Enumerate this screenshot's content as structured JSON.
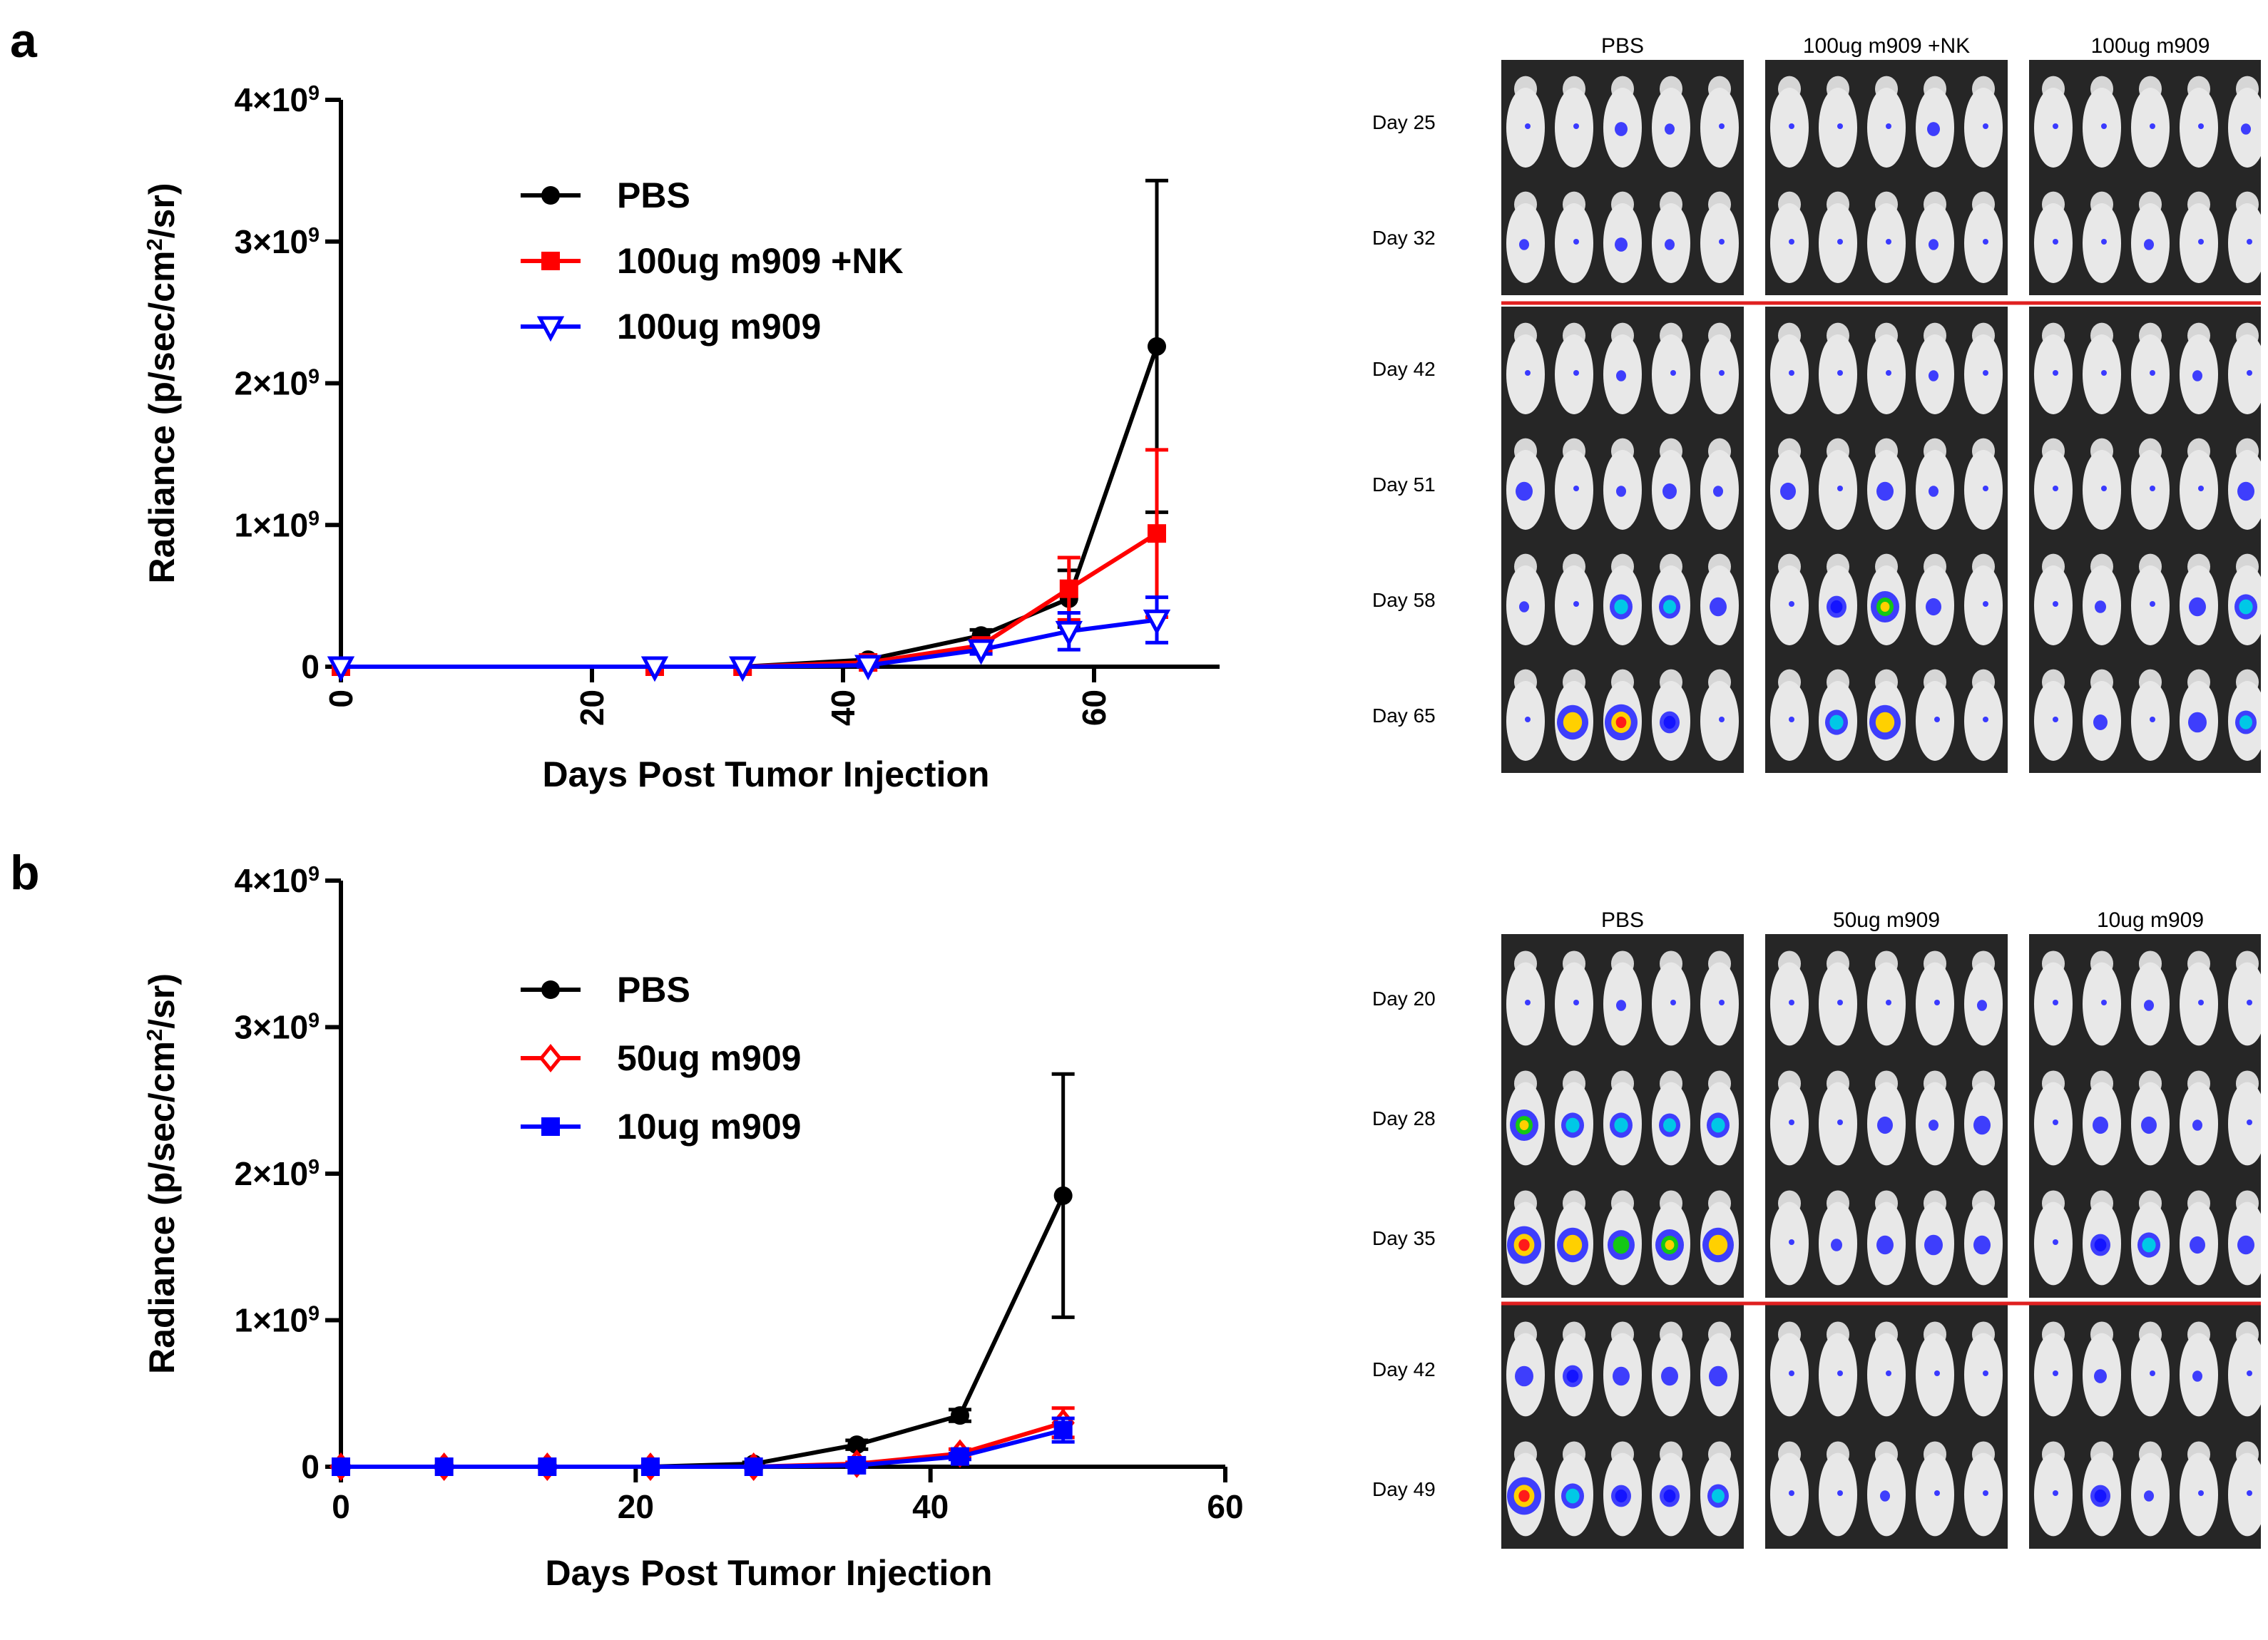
{
  "figure": {
    "panels": [
      {
        "letter": "a",
        "image_grid": {
          "groups": [
            "PBS",
            "100ug m909 +NK",
            "100ug m909"
          ],
          "days": [
            "Day 25",
            "Day 32",
            "Day 42",
            "Day 51",
            "Day 58",
            "Day 65"
          ],
          "separator_after_row": 1,
          "signal": [
            [
              [
                0.05,
                0.05,
                0.2,
                0.1,
                0.05
              ],
              [
                0.05,
                0.05,
                0.05,
                0.2,
                0.05
              ],
              [
                0.05,
                0.05,
                0.05,
                0.05,
                0.1
              ]
            ],
            [
              [
                0.1,
                0.05,
                0.2,
                0.1,
                0.05
              ],
              [
                0.05,
                0.05,
                0.05,
                0.1,
                0.05
              ],
              [
                0.05,
                0.05,
                0.1,
                0.05,
                0.05
              ]
            ],
            [
              [
                0.05,
                0.05,
                0.1,
                0.05,
                0.05
              ],
              [
                0.05,
                0.05,
                0.05,
                0.1,
                0.05
              ],
              [
                0.05,
                0.05,
                0.05,
                0.1,
                0.05
              ]
            ],
            [
              [
                0.35,
                0.05,
                0.1,
                0.25,
                0.1
              ],
              [
                0.3,
                0.05,
                0.35,
                0.1,
                0.05
              ],
              [
                0.05,
                0.05,
                0.05,
                0.05,
                0.35
              ]
            ],
            [
              [
                0.1,
                0.05,
                0.55,
                0.5,
                0.35
              ],
              [
                0.05,
                0.45,
                0.75,
                0.3,
                0.05
              ],
              [
                0.05,
                0.15,
                0.05,
                0.35,
                0.55
              ]
            ],
            [
              [
                0.05,
                0.85,
                0.9,
                0.45,
                0.05
              ],
              [
                0.05,
                0.55,
                0.85,
                0.05,
                0.05
              ],
              [
                0.05,
                0.25,
                0.05,
                0.4,
                0.5
              ]
            ]
          ]
        }
      },
      {
        "letter": "b",
        "image_grid": {
          "groups": [
            "PBS",
            "50ug m909",
            "10ug m909"
          ],
          "days": [
            "Day 20",
            "Day 28",
            "Day 35",
            "Day 42",
            "Day 49"
          ],
          "separator_after_row": 2,
          "signal": [
            [
              [
                0.05,
                0.05,
                0.1,
                0.05,
                0.05
              ],
              [
                0.05,
                0.05,
                0.05,
                0.05,
                0.1
              ],
              [
                0.05,
                0.05,
                0.1,
                0.05,
                0.05
              ]
            ],
            [
              [
                0.75,
                0.55,
                0.55,
                0.5,
                0.55
              ],
              [
                0.05,
                0.05,
                0.3,
                0.1,
                0.35
              ],
              [
                0.05,
                0.3,
                0.3,
                0.1,
                0.05
              ]
            ],
            [
              [
                0.95,
                0.85,
                0.7,
                0.75,
                0.85
              ],
              [
                0.05,
                0.15,
                0.35,
                0.4,
                0.35
              ],
              [
                0.05,
                0.45,
                0.55,
                0.3,
                0.35
              ]
            ],
            [
              [
                0.4,
                0.45,
                0.35,
                0.35,
                0.4
              ],
              [
                0.05,
                0.05,
                0.05,
                0.05,
                0.05
              ],
              [
                0.05,
                0.2,
                0.05,
                0.1,
                0.05
              ]
            ],
            [
              [
                0.95,
                0.55,
                0.45,
                0.45,
                0.5
              ],
              [
                0.05,
                0.05,
                0.1,
                0.05,
                0.05
              ],
              [
                0.05,
                0.45,
                0.1,
                0.05,
                0.05
              ]
            ]
          ]
        }
      }
    ]
  },
  "chart_data": [
    {
      "type": "line",
      "panel": "a",
      "xlabel": "Days Post Tumor Injection",
      "ylabel": "Radiance (p/sec/cm²/sr)",
      "xlim": [
        0,
        70
      ],
      "ylim": [
        0,
        4000000000
      ],
      "xticks": [
        0,
        20,
        40,
        60
      ],
      "xtick_labels": [
        "0",
        "20",
        "40",
        "60"
      ],
      "yticks": [
        0,
        1000000000,
        2000000000,
        3000000000,
        4000000000
      ],
      "ytick_labels": [
        "0",
        "1×10⁹",
        "2×10⁹",
        "3×10⁹",
        "4×10⁹"
      ],
      "xticks_rotated": true,
      "legend_position": "upper-left",
      "series": [
        {
          "name": "PBS",
          "color": "#000000",
          "marker": "circle",
          "x": [
            0,
            25,
            32,
            42,
            51,
            58,
            65
          ],
          "y": [
            0,
            0,
            0,
            50000000,
            220000000,
            480000000,
            2260000000
          ],
          "err": [
            0,
            0,
            0,
            20000000,
            40000000,
            200000000,
            1170000000
          ]
        },
        {
          "name": "100ug m909 +NK",
          "color": "#ff0000",
          "marker": "square",
          "x": [
            0,
            25,
            32,
            42,
            51,
            58,
            65
          ],
          "y": [
            0,
            0,
            0,
            30000000,
            150000000,
            550000000,
            940000000
          ],
          "err": [
            0,
            0,
            0,
            15000000,
            40000000,
            220000000,
            590000000
          ]
        },
        {
          "name": "100ug m909",
          "color": "#0000ff",
          "marker": "triangle-down-open",
          "x": [
            0,
            25,
            32,
            42,
            51,
            58,
            65
          ],
          "y": [
            0,
            0,
            0,
            10000000,
            120000000,
            250000000,
            330000000
          ],
          "err": [
            0,
            0,
            0,
            10000000,
            30000000,
            130000000,
            160000000
          ]
        }
      ]
    },
    {
      "type": "line",
      "panel": "b",
      "xlabel": "Days Post Tumor Injection",
      "ylabel": "Radiance (p/sec/cm²/sr)",
      "xlim": [
        0,
        60
      ],
      "ylim": [
        0,
        4000000000
      ],
      "xticks": [
        0,
        20,
        40,
        60
      ],
      "xtick_labels": [
        "0",
        "20",
        "40",
        "60"
      ],
      "yticks": [
        0,
        1000000000,
        2000000000,
        3000000000,
        4000000000
      ],
      "ytick_labels": [
        "0",
        "1×10⁹",
        "2×10⁹",
        "3×10⁹",
        "4×10⁹"
      ],
      "xticks_rotated": false,
      "legend_position": "upper-left",
      "series": [
        {
          "name": "PBS",
          "color": "#000000",
          "marker": "circle",
          "x": [
            0,
            7,
            14,
            21,
            28,
            35,
            42,
            49
          ],
          "y": [
            0,
            0,
            0,
            0,
            20000000,
            150000000,
            350000000,
            1850000000
          ],
          "err": [
            0,
            0,
            0,
            0,
            10000000,
            30000000,
            40000000,
            830000000
          ]
        },
        {
          "name": "50ug m909",
          "color": "#ff0000",
          "marker": "diamond-open",
          "x": [
            0,
            7,
            14,
            21,
            28,
            35,
            42,
            49
          ],
          "y": [
            0,
            0,
            0,
            0,
            0,
            20000000,
            90000000,
            300000000
          ],
          "err": [
            0,
            0,
            0,
            0,
            0,
            10000000,
            30000000,
            100000000
          ]
        },
        {
          "name": "10ug m909",
          "color": "#0000ff",
          "marker": "square",
          "x": [
            0,
            7,
            14,
            21,
            28,
            35,
            42,
            49
          ],
          "y": [
            0,
            0,
            0,
            0,
            0,
            10000000,
            70000000,
            250000000
          ],
          "err": [
            0,
            0,
            0,
            0,
            0,
            10000000,
            20000000,
            80000000
          ]
        }
      ]
    }
  ]
}
